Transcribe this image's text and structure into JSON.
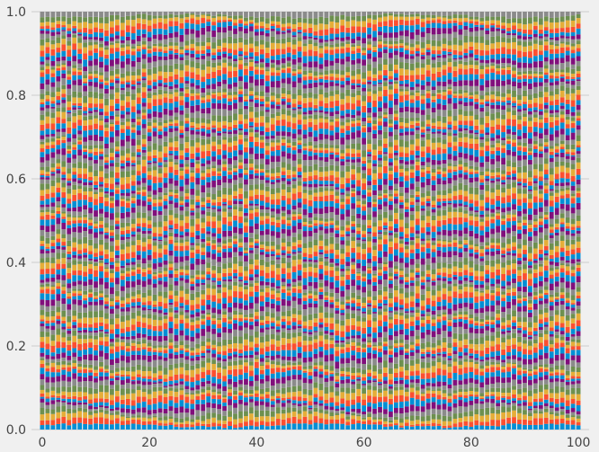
{
  "chart_data": {
    "type": "bar",
    "stacking": "normalized-100",
    "title": "",
    "xlabel": "",
    "ylabel": "",
    "xlim": [
      -2.0,
      102.0
    ],
    "ylim": [
      0.0,
      1.0
    ],
    "grid": "horizontal",
    "x_ticks": [
      "0",
      "20",
      "40",
      "60",
      "80",
      "100"
    ],
    "y_ticks": [
      "0.0",
      "0.2",
      "0.4",
      "0.6",
      "0.8",
      "1.0"
    ],
    "bar_count": 101,
    "x": [
      0,
      1,
      2,
      3,
      4,
      5,
      6,
      7,
      8,
      9,
      10,
      11,
      12,
      13,
      14,
      15,
      16,
      17,
      18,
      19,
      20,
      21,
      22,
      23,
      24,
      25,
      26,
      27,
      28,
      29,
      30,
      31,
      32,
      33,
      34,
      35,
      36,
      37,
      38,
      39,
      40,
      41,
      42,
      43,
      44,
      45,
      46,
      47,
      48,
      49,
      50,
      51,
      52,
      53,
      54,
      55,
      56,
      57,
      58,
      59,
      60,
      61,
      62,
      63,
      64,
      65,
      66,
      67,
      68,
      69,
      70,
      71,
      72,
      73,
      74,
      75,
      76,
      77,
      78,
      79,
      80,
      81,
      82,
      83,
      84,
      85,
      86,
      87,
      88,
      89,
      90,
      91,
      92,
      93,
      94,
      95,
      96,
      97,
      98,
      99,
      100
    ],
    "segments_per_bar": 101,
    "color_cycle": [
      "#008fd5",
      "#fc4f30",
      "#e5ae38",
      "#6d904f",
      "#8b8b8b",
      "#810f7c"
    ],
    "segment_values_note_free": true,
    "series_shares": [
      [
        0.0503,
        0.0503,
        0.0503,
        0.0503,
        0.0503,
        0.0503,
        0.0503,
        0.0503,
        0.0503,
        0.0503
      ],
      [
        0.0442,
        0.0442,
        0.0442,
        0.0442,
        0.0442,
        0.0442,
        0.0442,
        0.0442,
        0.0442,
        0.0442
      ]
    ]
  }
}
